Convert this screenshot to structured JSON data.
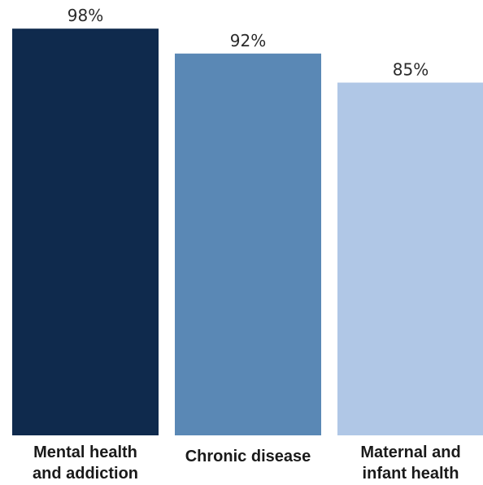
{
  "chart_data": {
    "type": "bar",
    "categories": [
      [
        "Mental health",
        "and addiction"
      ],
      [
        "Chronic disease"
      ],
      [
        "Maternal and",
        "infant health"
      ]
    ],
    "values": [
      98,
      92,
      85
    ],
    "value_labels": [
      "98%",
      "92%",
      "85%"
    ],
    "colors": [
      "#0f2a4d",
      "#5a88b5",
      "#b0c7e6"
    ],
    "ylim": [
      0,
      100
    ],
    "grid": false,
    "legend": "none"
  }
}
